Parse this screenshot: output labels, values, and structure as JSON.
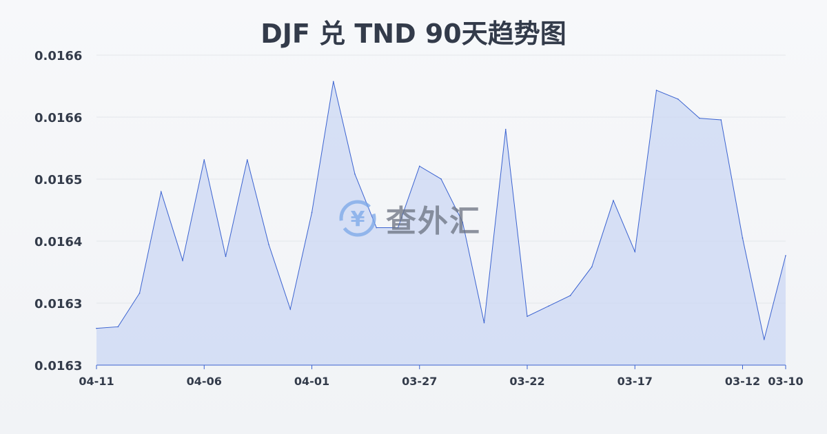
{
  "chart_data": {
    "type": "area",
    "title": "DJF 兑 TND 90天趋势图",
    "xlabel": "",
    "ylabel": "",
    "x": [
      "04-11",
      "04-10",
      "04-09",
      "04-08",
      "04-07",
      "04-06",
      "04-05",
      "04-04",
      "04-03",
      "04-02",
      "04-01",
      "03-31",
      "03-30",
      "03-29",
      "03-28",
      "03-27",
      "03-26",
      "03-25",
      "03-24",
      "03-23",
      "03-22",
      "03-21",
      "03-20",
      "03-19",
      "03-18",
      "03-17",
      "03-16",
      "03-15",
      "03-14",
      "03-13",
      "03-12",
      "03-11",
      "03-10"
    ],
    "values": [
      0.016301,
      0.016303,
      0.016345,
      0.016472,
      0.016386,
      0.016512,
      0.016391,
      0.016512,
      0.016406,
      0.016325,
      0.016446,
      0.01661,
      0.016494,
      0.016427,
      0.016427,
      0.016504,
      0.016488,
      0.016434,
      0.016308,
      0.01655,
      0.016316,
      0.016329,
      0.016342,
      0.016378,
      0.016461,
      0.016397,
      0.016599,
      0.016588,
      0.016564,
      0.016562,
      0.016414,
      0.016287,
      0.016392
    ],
    "x_tick_labels": [
      "04-11",
      "04-06",
      "04-01",
      "03-27",
      "03-22",
      "03-17",
      "03-12",
      "03-10"
    ],
    "y_tick_labels": [
      "0.0163",
      "0.0163",
      "0.0164",
      "0.0165",
      "0.0166",
      "0.0166"
    ],
    "ylim": [
      0.016255,
      0.016643
    ],
    "grid": true,
    "line_color": "#3a62d0",
    "fill_color": "#c9d6f3"
  },
  "watermark": {
    "text": "查外汇",
    "icon": "yen-exchange-icon"
  }
}
